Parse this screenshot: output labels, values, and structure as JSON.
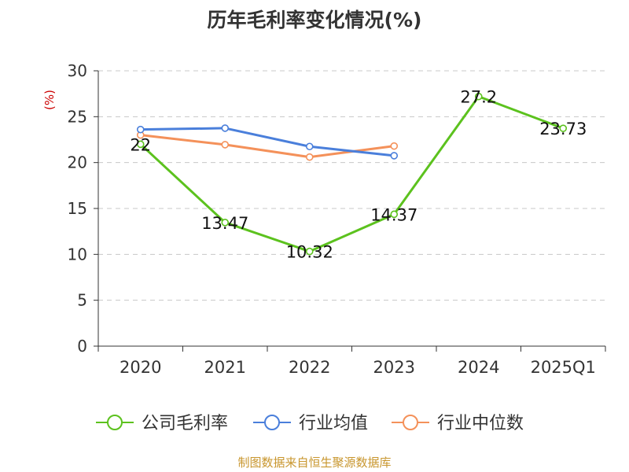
{
  "chart_data": {
    "type": "line",
    "title": "历年毛利率变化情况(%)",
    "ylabel": "(%)",
    "xlabel": "",
    "categories": [
      "2020",
      "2021",
      "2022",
      "2023",
      "2024",
      "2025Q1"
    ],
    "ylim": [
      0,
      30
    ],
    "yticks": [
      0,
      5,
      10,
      15,
      20,
      25,
      30
    ],
    "grid": true,
    "legend_position": "bottom",
    "series": [
      {
        "name": "公司毛利率",
        "color": "#5cc21e",
        "show_labels": true,
        "values": [
          22,
          13.47,
          10.32,
          14.37,
          27.2,
          23.73
        ]
      },
      {
        "name": "行业均值",
        "color": "#4a7fdb",
        "show_labels": false,
        "values": [
          23.6,
          23.75,
          21.75,
          20.75,
          null,
          null
        ]
      },
      {
        "name": "行业中位数",
        "color": "#f4915a",
        "show_labels": false,
        "values": [
          23.0,
          21.95,
          20.6,
          21.8,
          null,
          null
        ]
      }
    ]
  },
  "footer": {
    "text": "制图数据来自恒生聚源数据库",
    "color": "#c8962e"
  }
}
